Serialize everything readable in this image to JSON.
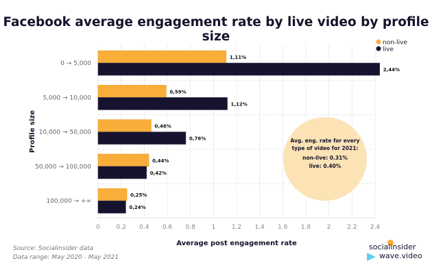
{
  "chart_data": {
    "type": "bar",
    "orientation": "horizontal",
    "title": "Facebook average engagement rate by live video by profile size",
    "xlabel": "Average post engagement rate",
    "ylabel": "Profile size",
    "categories": [
      "0 → 5,000",
      "5,000 → 10,000",
      "10,000 → 50,000",
      "50,000 → 100,000",
      "100,000 → +∞"
    ],
    "series": [
      {
        "name": "non-live",
        "color": "#f9ae3a",
        "values": [
          1.11,
          0.59,
          0.46,
          0.44,
          0.25
        ],
        "labels": [
          "1,11%",
          "0,59%",
          "0,46%",
          "0,44%",
          "0,25%"
        ]
      },
      {
        "name": "live",
        "color": "#16132e",
        "values": [
          2.44,
          1.12,
          0.76,
          0.42,
          0.24
        ],
        "labels": [
          "2,44%",
          "1,12%",
          "0,76%",
          "0,42%",
          "0,24%"
        ]
      }
    ],
    "xlim": [
      0,
      2.4
    ],
    "xticks": [
      "0",
      "0.2",
      "0.4",
      "0.6",
      "0.8",
      "1",
      "1.2",
      "1.4",
      "1.6",
      "1.8",
      "2",
      "2.2",
      "2.4"
    ],
    "grid": true,
    "legend_position": "top-right",
    "annotation": {
      "line1": "Avg. eng. rate for every",
      "line2": "type of video for 2021:",
      "line3": "non-live: 0.31%",
      "line4": "live: 0.40%",
      "color": "#fbe3b6"
    }
  },
  "footer": {
    "source": "Source: Socialinsider data",
    "range": "Data range: May 2020 - May 2021",
    "logo1": "socialinsider",
    "logo2": "wave.video"
  }
}
